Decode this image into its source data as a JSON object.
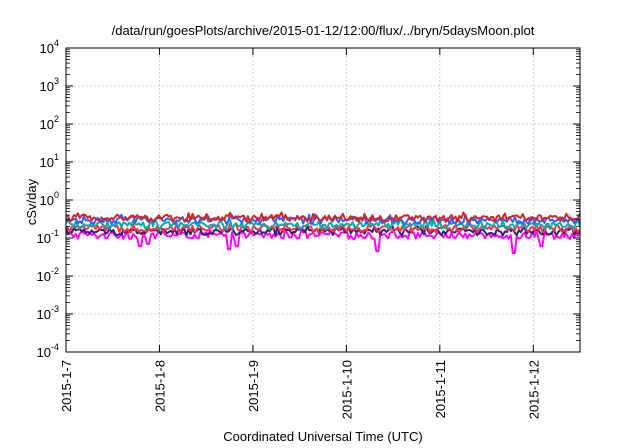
{
  "chart_data": {
    "type": "line",
    "title": "/data/run/goesPlots/archive/2015-01-12/12:00/flux/../bryn/5daysMoon.plot",
    "xlabel": "Coordinated Universal Time (UTC)",
    "ylabel": "cSv/day",
    "yscale": "log",
    "ylim": [
      0.0001,
      10000
    ],
    "xlim": [
      "2015-01-07",
      "2015-01-12 12:00"
    ],
    "x_tick_labels": [
      "2015-1-7",
      "2015-1-8",
      "2015-1-9",
      "2015-1-10",
      "2015-1-11",
      "2015-1-12"
    ],
    "y_ticks": [
      {
        "base": "10",
        "exp": "-4"
      },
      {
        "base": "10",
        "exp": "-3"
      },
      {
        "base": "10",
        "exp": "-2"
      },
      {
        "base": "10",
        "exp": "-1"
      },
      {
        "base": "10",
        "exp": "0"
      },
      {
        "base": "10",
        "exp": "1"
      },
      {
        "base": "10",
        "exp": "2"
      },
      {
        "base": "10",
        "exp": "3"
      },
      {
        "base": "10",
        "exp": "4"
      }
    ],
    "grid": true,
    "legend": "none",
    "series": [
      {
        "color": "#ff00ff",
        "level": 0.12,
        "dips": [
          [
            "2015-01-07 19:00",
            0.06
          ],
          [
            "2015-01-07 21:00",
            0.07
          ],
          [
            "2015-01-08 18:00",
            0.05
          ],
          [
            "2015-01-08 20:00",
            0.06
          ],
          [
            "2015-01-10 08:00",
            0.045
          ],
          [
            "2015-01-11 19:00",
            0.04
          ],
          [
            "2015-01-12 02:00",
            0.06
          ]
        ]
      },
      {
        "color": "#2f1f7f",
        "level": 0.15,
        "dips": []
      },
      {
        "color": "#ff3040",
        "level": 0.18,
        "dips": []
      },
      {
        "color": "#00b0b0",
        "level": 0.22,
        "dips": []
      },
      {
        "color": "#3060ff",
        "level": 0.3,
        "dips": []
      },
      {
        "color": "#e02020",
        "level": 0.34,
        "dips": []
      }
    ]
  }
}
